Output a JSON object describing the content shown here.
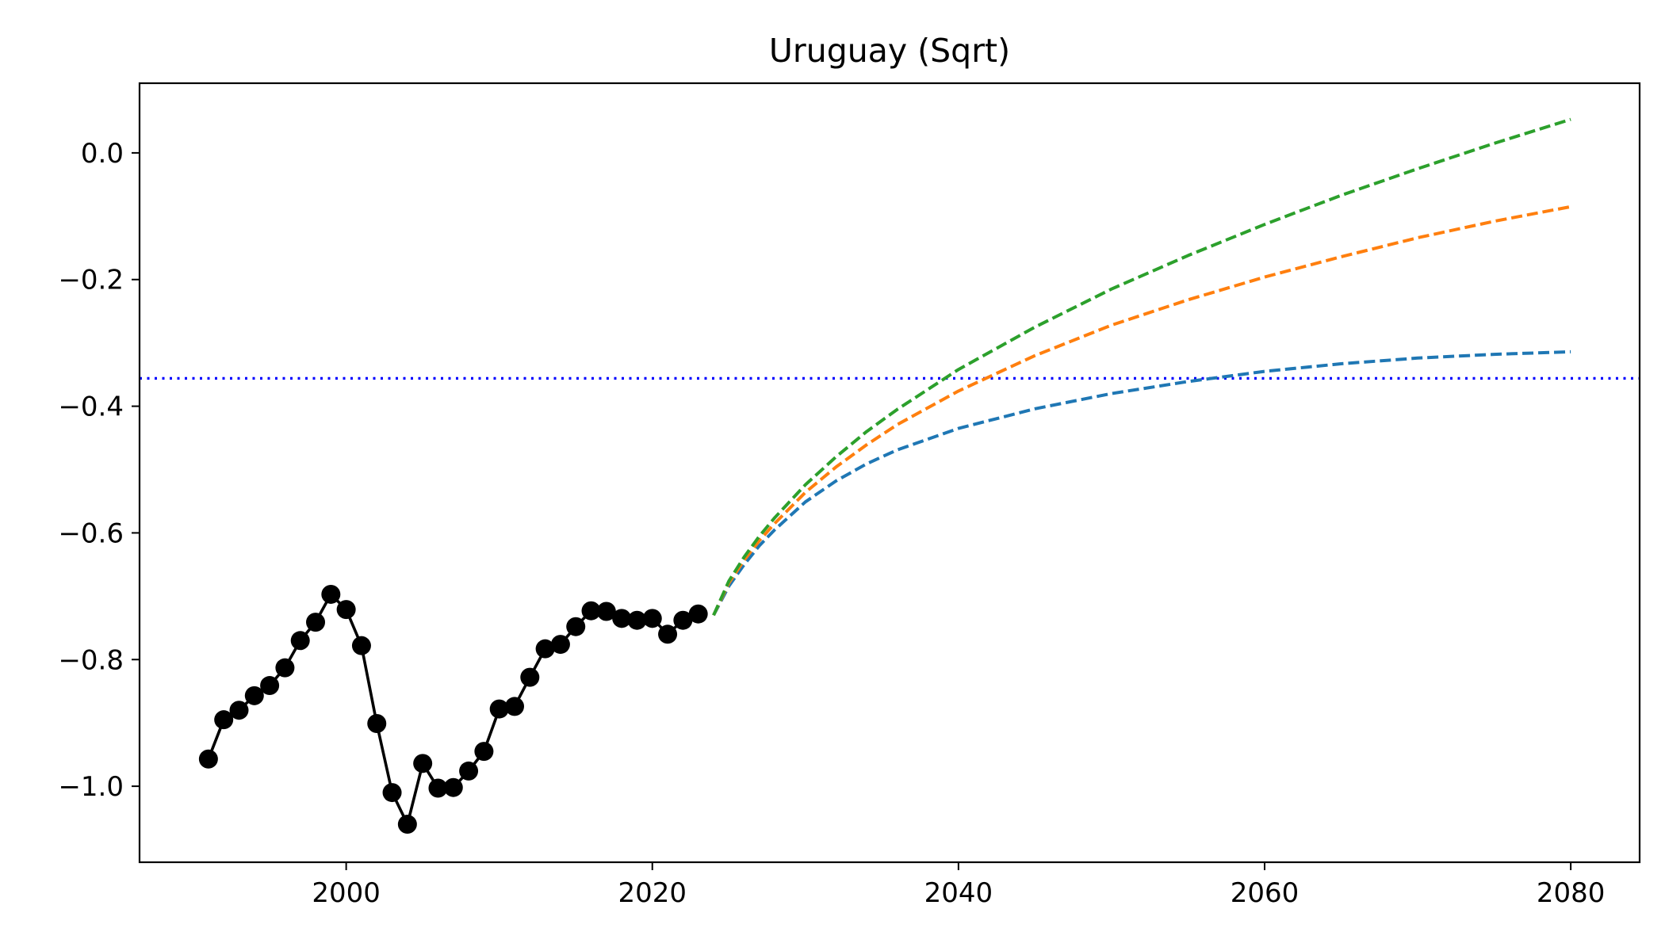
{
  "chart_data": {
    "type": "line",
    "title": "Uruguay (Sqrt)",
    "xlabel": "",
    "ylabel": "",
    "xlim": [
      1986.5,
      2084.5
    ],
    "ylim": [
      -1.12,
      0.11
    ],
    "x_ticks": [
      2000,
      2020,
      2040,
      2060,
      2080
    ],
    "x_tick_labels": [
      "2000",
      "2020",
      "2040",
      "2060",
      "2080"
    ],
    "y_ticks": [
      0.0,
      -0.2,
      -0.4,
      -0.6,
      -0.8,
      -1.0
    ],
    "y_tick_labels": [
      "0.0",
      "−0.2",
      "−0.4",
      "−0.6",
      "−0.8",
      "−1.0"
    ],
    "grid": false,
    "legend": "none",
    "reference_line": {
      "y": -0.356,
      "color": "#0000ff",
      "style": "dotted"
    },
    "historical": {
      "color": "#000000",
      "x": [
        1991,
        1992,
        1993,
        1994,
        1995,
        1996,
        1997,
        1998,
        1999,
        2000,
        2001,
        2002,
        2003,
        2004,
        2005,
        2006,
        2007,
        2008,
        2009,
        2010,
        2011,
        2012,
        2013,
        2014,
        2015,
        2016,
        2017,
        2018,
        2019,
        2020,
        2021,
        2022,
        2023
      ],
      "y": [
        -0.957,
        -0.895,
        -0.88,
        -0.857,
        -0.841,
        -0.813,
        -0.77,
        -0.741,
        -0.697,
        -0.721,
        -0.778,
        -0.901,
        -1.01,
        -1.06,
        -0.964,
        -1.003,
        -1.002,
        -0.976,
        -0.945,
        -0.878,
        -0.874,
        -0.828,
        -0.783,
        -0.776,
        -0.748,
        -0.723,
        -0.724,
        -0.735,
        -0.738,
        -0.735,
        -0.76,
        -0.738,
        -0.728
      ]
    },
    "series": [
      {
        "color": "#1f77b4",
        "style": "dashed",
        "x": [
          2024,
          2025,
          2026,
          2027,
          2028,
          2030,
          2032,
          2034,
          2036,
          2040,
          2045,
          2050,
          2055,
          2060,
          2065,
          2070,
          2075,
          2080
        ],
        "y": [
          -0.73,
          -0.684,
          -0.65,
          -0.62,
          -0.595,
          -0.551,
          -0.518,
          -0.491,
          -0.469,
          -0.435,
          -0.404,
          -0.38,
          -0.361,
          -0.345,
          -0.333,
          -0.324,
          -0.318,
          -0.314
        ]
      },
      {
        "color": "#ff7f0e",
        "style": "dashed",
        "x": [
          2024,
          2025,
          2026,
          2027,
          2028,
          2030,
          2032,
          2034,
          2036,
          2040,
          2045,
          2050,
          2055,
          2060,
          2065,
          2070,
          2075,
          2080
        ],
        "y": [
          -0.73,
          -0.679,
          -0.643,
          -0.612,
          -0.585,
          -0.536,
          -0.496,
          -0.461,
          -0.429,
          -0.376,
          -0.32,
          -0.272,
          -0.232,
          -0.196,
          -0.164,
          -0.134,
          -0.108,
          -0.085
        ]
      },
      {
        "color": "#2ca02c",
        "style": "dashed",
        "x": [
          2024,
          2025,
          2026,
          2027,
          2028,
          2030,
          2032,
          2034,
          2036,
          2040,
          2045,
          2050,
          2055,
          2060,
          2065,
          2070,
          2075,
          2080
        ],
        "y": [
          -0.73,
          -0.676,
          -0.638,
          -0.605,
          -0.576,
          -0.524,
          -0.48,
          -0.44,
          -0.405,
          -0.342,
          -0.275,
          -0.215,
          -0.162,
          -0.113,
          -0.067,
          -0.025,
          0.015,
          0.053
        ]
      }
    ]
  }
}
